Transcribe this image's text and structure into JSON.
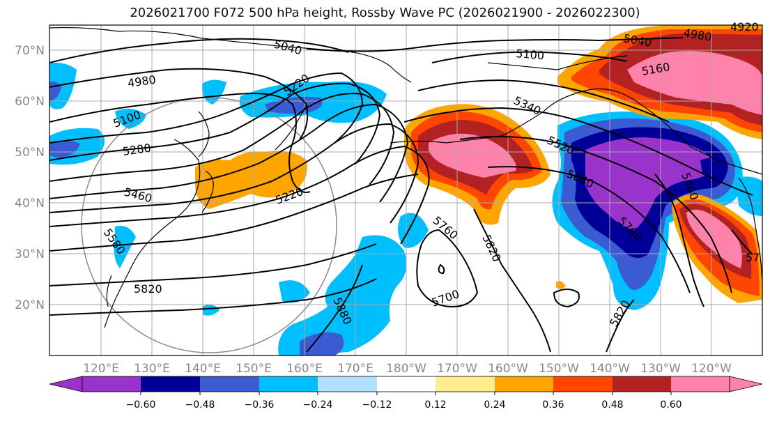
{
  "title": "2026021700 F072 500 hPa height, Rossby Wave PC (2026021900 - 2026022300)",
  "colors": {
    "neg_060": "#9933cc",
    "neg_048": "#000099",
    "neg_036": "#3a5bd1",
    "neg_024": "#00bfff",
    "neg_012": "#b0e2ff",
    "zero": "#ffffff",
    "pos_012": "#ffec8b",
    "pos_024": "#ffa500",
    "pos_036": "#ff4500",
    "pos_048": "#b22222",
    "pos_060": "#ff82ab"
  },
  "lat_labels": [
    "70°N",
    "60°N",
    "50°N",
    "40°N",
    "30°N",
    "20°N"
  ],
  "lon_labels": [
    "120°E",
    "130°E",
    "140°E",
    "150°E",
    "160°E",
    "170°E",
    "180°W",
    "170°W",
    "160°W",
    "150°W",
    "140°W",
    "130°W",
    "120°W"
  ],
  "colorbar_ticks": [
    "−0.60",
    "−0.48",
    "−0.36",
    "−0.24",
    "−0.12",
    "0.12",
    "0.24",
    "0.36",
    "0.48",
    "0.60"
  ],
  "contour_labels": [
    "5040",
    "4980",
    "5100",
    "5220",
    "5280",
    "5460",
    "5580",
    "5820",
    "5040",
    "4980",
    "4920",
    "5100",
    "5160",
    "5340",
    "5520",
    "5640",
    "5460",
    "5760",
    "5760",
    "5700",
    "5820",
    "5220",
    "5880",
    "5820",
    "57"
  ]
}
